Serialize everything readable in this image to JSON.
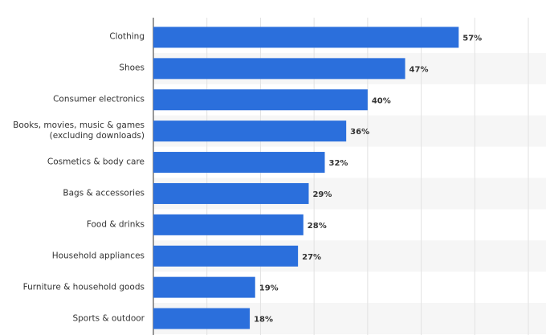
{
  "chart_data": {
    "type": "hbar",
    "categories": [
      "Clothing",
      "Shoes",
      "Consumer electronics",
      "Books, movies, music & games\n(excluding downloads)",
      "Cosmetics & body care",
      "Bags & accessories",
      "Food & drinks",
      "Household appliances",
      "Furniture & household goods",
      "Sports & outdoor"
    ],
    "values": [
      57,
      47,
      40,
      36,
      32,
      29,
      28,
      27,
      19,
      18
    ],
    "value_labels": [
      "57%",
      "47%",
      "40%",
      "36%",
      "32%",
      "29%",
      "28%",
      "27%",
      "19%",
      "18%"
    ],
    "color": "#2b6fdc",
    "xlim": [
      0,
      70
    ],
    "xticks": [
      0,
      10,
      20,
      30,
      40,
      50,
      60,
      70
    ],
    "grid": true
  }
}
